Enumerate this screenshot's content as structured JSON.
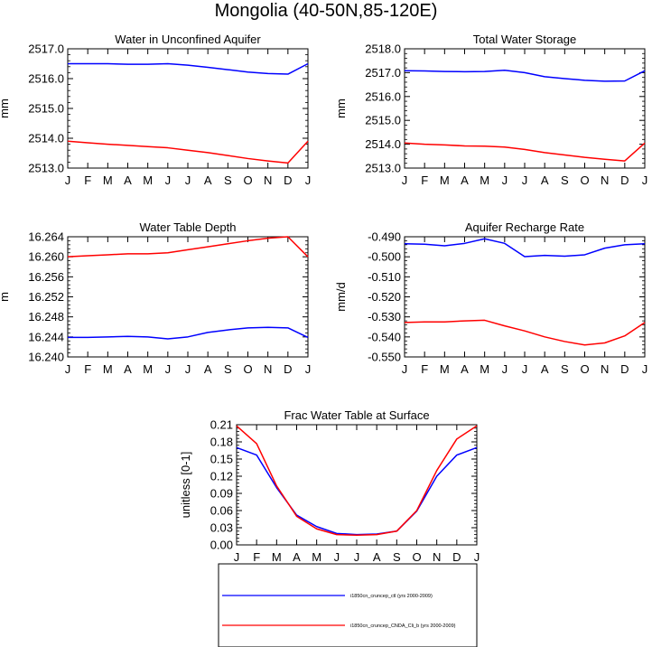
{
  "figure_title": "Mongolia (40-50N,85-120E)",
  "legend": {
    "placement": "bottom-center",
    "entries": [
      {
        "label": "i1850cn_cruncep_ctl (yrs 2000-2009)",
        "color": "#0000ff"
      },
      {
        "label": "i1850cn_cruncep_CNDA_Cli_b (yrs 2000-2009)",
        "color": "#ff0000"
      }
    ]
  },
  "colors": {
    "ctl": "#0000ff",
    "exp": "#ff0000"
  },
  "chart_data": [
    {
      "type": "line",
      "title": "Water in Unconfined Aquifer",
      "ylabel": "mm",
      "categories": [
        "J",
        "F",
        "M",
        "A",
        "M",
        "J",
        "J",
        "A",
        "S",
        "O",
        "N",
        "D",
        "J"
      ],
      "ylim": [
        2513.0,
        2517.0
      ],
      "yticks": [
        2513.0,
        2514.0,
        2515.0,
        2516.0,
        2517.0
      ],
      "ytick_labels": [
        "2513.0",
        "2514.0",
        "2515.0",
        "2516.0",
        "2517.0"
      ],
      "series": [
        {
          "key": "ctl",
          "values": [
            2516.5,
            2516.5,
            2516.5,
            2516.48,
            2516.48,
            2516.5,
            2516.45,
            2516.38,
            2516.3,
            2516.22,
            2516.17,
            2516.15,
            2516.5
          ]
        },
        {
          "key": "exp",
          "values": [
            2513.9,
            2513.85,
            2513.8,
            2513.76,
            2513.72,
            2513.68,
            2513.6,
            2513.52,
            2513.42,
            2513.32,
            2513.24,
            2513.17,
            2513.9
          ]
        }
      ]
    },
    {
      "type": "line",
      "title": "Total Water Storage",
      "ylabel": "mm",
      "categories": [
        "J",
        "F",
        "M",
        "A",
        "M",
        "J",
        "J",
        "A",
        "S",
        "O",
        "N",
        "D",
        "J"
      ],
      "ylim": [
        2513.0,
        2518.0
      ],
      "yticks": [
        2513.0,
        2514.0,
        2515.0,
        2516.0,
        2517.0,
        2518.0
      ],
      "ytick_labels": [
        "2513.0",
        "2514.0",
        "2515.0",
        "2516.0",
        "2517.0",
        "2518.0"
      ],
      "series": [
        {
          "key": "ctl",
          "values": [
            2517.08,
            2517.07,
            2517.05,
            2517.04,
            2517.05,
            2517.1,
            2517.0,
            2516.83,
            2516.75,
            2516.68,
            2516.64,
            2516.65,
            2517.08
          ]
        },
        {
          "key": "exp",
          "values": [
            2514.05,
            2514.0,
            2513.97,
            2513.93,
            2513.92,
            2513.88,
            2513.78,
            2513.65,
            2513.55,
            2513.45,
            2513.37,
            2513.3,
            2514.05
          ]
        }
      ]
    },
    {
      "type": "line",
      "title": "Water Table Depth",
      "ylabel": "m",
      "categories": [
        "J",
        "F",
        "M",
        "A",
        "M",
        "J",
        "J",
        "A",
        "S",
        "O",
        "N",
        "D",
        "J"
      ],
      "ylim": [
        16.24,
        16.264
      ],
      "yticks": [
        16.24,
        16.244,
        16.248,
        16.252,
        16.256,
        16.26,
        16.264
      ],
      "ytick_labels": [
        "16.240",
        "16.244",
        "16.248",
        "16.252",
        "16.256",
        "16.260",
        "16.264"
      ],
      "series": [
        {
          "key": "ctl",
          "values": [
            16.2439,
            16.2439,
            16.244,
            16.2441,
            16.244,
            16.2436,
            16.244,
            16.2449,
            16.2454,
            16.2458,
            16.2459,
            16.2458,
            16.2439
          ]
        },
        {
          "key": "exp",
          "values": [
            16.26,
            16.2602,
            16.2604,
            16.2606,
            16.2606,
            16.2608,
            16.2614,
            16.262,
            16.2626,
            16.2632,
            16.2637,
            16.264,
            16.26
          ]
        }
      ]
    },
    {
      "type": "line",
      "title": "Aquifer Recharge Rate",
      "ylabel": "mm/d",
      "categories": [
        "J",
        "F",
        "M",
        "A",
        "M",
        "J",
        "J",
        "A",
        "S",
        "O",
        "N",
        "D",
        "J"
      ],
      "ylim": [
        -0.55,
        -0.49
      ],
      "yticks": [
        -0.55,
        -0.54,
        -0.53,
        -0.52,
        -0.51,
        -0.5,
        -0.49
      ],
      "ytick_labels": [
        "-0.550",
        "-0.540",
        "-0.530",
        "-0.520",
        "-0.510",
        "-0.500",
        "-0.490"
      ],
      "series": [
        {
          "key": "ctl",
          "values": [
            -0.4935,
            -0.4937,
            -0.4945,
            -0.4933,
            -0.491,
            -0.4933,
            -0.4999,
            -0.4993,
            -0.4997,
            -0.499,
            -0.4957,
            -0.494,
            -0.4935
          ]
        },
        {
          "key": "exp",
          "values": [
            -0.5328,
            -0.5325,
            -0.5325,
            -0.532,
            -0.5317,
            -0.5345,
            -0.537,
            -0.54,
            -0.5423,
            -0.544,
            -0.543,
            -0.5395,
            -0.5328
          ]
        }
      ]
    },
    {
      "type": "line",
      "title": "Frac Water Table at Surface",
      "ylabel": "unitless [0-1]",
      "categories": [
        "J",
        "F",
        "M",
        "A",
        "M",
        "J",
        "J",
        "A",
        "S",
        "O",
        "N",
        "D",
        "J"
      ],
      "ylim": [
        0.0,
        0.21
      ],
      "yticks": [
        0.0,
        0.03,
        0.06,
        0.09,
        0.12,
        0.15,
        0.18,
        0.21
      ],
      "ytick_labels": [
        "0.00",
        "0.03",
        "0.06",
        "0.09",
        "0.12",
        "0.15",
        "0.18",
        "0.21"
      ],
      "series": [
        {
          "key": "ctl",
          "values": [
            0.17,
            0.157,
            0.1,
            0.052,
            0.032,
            0.02,
            0.018,
            0.019,
            0.024,
            0.059,
            0.12,
            0.157,
            0.17
          ]
        },
        {
          "key": "exp",
          "values": [
            0.208,
            0.177,
            0.103,
            0.05,
            0.028,
            0.018,
            0.017,
            0.018,
            0.024,
            0.06,
            0.13,
            0.185,
            0.208
          ]
        }
      ]
    }
  ]
}
